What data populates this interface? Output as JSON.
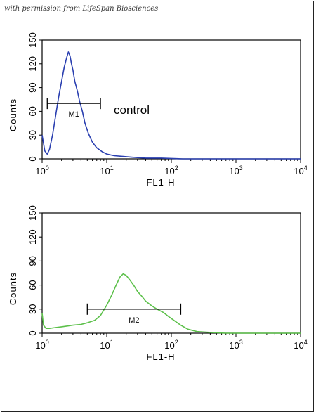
{
  "watermark": "with permission from LifeSpan Biosciences",
  "chart_data": [
    {
      "type": "line",
      "title": "",
      "xlabel": "FL1-H",
      "ylabel": "Counts",
      "xscale": "log",
      "xlim": [
        1,
        10000
      ],
      "ylim": [
        0,
        150
      ],
      "grid": false,
      "x_ticks": [
        {
          "base": "10",
          "exp": "0"
        },
        {
          "base": "10",
          "exp": "1"
        },
        {
          "base": "10",
          "exp": "2"
        },
        {
          "base": "10",
          "exp": "3"
        },
        {
          "base": "10",
          "exp": "4"
        }
      ],
      "y_ticks": [
        "0",
        "30",
        "60",
        "90",
        "120",
        "150"
      ],
      "annotation": "control",
      "gate": {
        "label": "M1",
        "x_start": 1.2,
        "x_end": 8.0,
        "y": 70
      },
      "series": [
        {
          "color": "#2a3fb0",
          "x": [
            1.0,
            1.05,
            1.1,
            1.2,
            1.3,
            1.45,
            1.6,
            1.8,
            2.0,
            2.2,
            2.4,
            2.55,
            2.7,
            2.85,
            3.0,
            3.2,
            3.5,
            3.8,
            4.2,
            4.6,
            5.2,
            6.0,
            7.0,
            8.5,
            10,
            13,
            18,
            25,
            40,
            70,
            150,
            400,
            1000,
            3000,
            10000
          ],
          "y": [
            30,
            20,
            10,
            6,
            12,
            30,
            52,
            78,
            98,
            116,
            128,
            135,
            130,
            120,
            112,
            98,
            86,
            73,
            60,
            45,
            32,
            21,
            14,
            9,
            6,
            4,
            3,
            2,
            1,
            1,
            0,
            0,
            0,
            0,
            0
          ]
        }
      ]
    },
    {
      "type": "line",
      "title": "",
      "xlabel": "FL1-H",
      "ylabel": "Counts",
      "xscale": "log",
      "xlim": [
        1,
        10000
      ],
      "ylim": [
        0,
        150
      ],
      "grid": false,
      "x_ticks": [
        {
          "base": "10",
          "exp": "0"
        },
        {
          "base": "10",
          "exp": "1"
        },
        {
          "base": "10",
          "exp": "2"
        },
        {
          "base": "10",
          "exp": "3"
        },
        {
          "base": "10",
          "exp": "4"
        }
      ],
      "y_ticks": [
        "0",
        "30",
        "60",
        "90",
        "120",
        "150"
      ],
      "annotation": "",
      "gate": {
        "label": "M2",
        "x_start": 5.0,
        "x_end": 140,
        "y": 30
      },
      "series": [
        {
          "color": "#5cc04a",
          "x": [
            1.0,
            1.05,
            1.15,
            1.3,
            1.6,
            2.0,
            2.5,
            3.0,
            4.0,
            5.0,
            6.5,
            8.0,
            10,
            12,
            14,
            16,
            18,
            20,
            23,
            26,
            30,
            35,
            40,
            50,
            60,
            75,
            90,
            110,
            140,
            180,
            250,
            400,
            700,
            1500,
            4000,
            10000
          ],
          "y": [
            25,
            10,
            6,
            6,
            7,
            8,
            9,
            10,
            11,
            13,
            16,
            22,
            35,
            48,
            60,
            70,
            74,
            72,
            66,
            60,
            52,
            46,
            40,
            34,
            30,
            26,
            21,
            16,
            10,
            5,
            2,
            1,
            0,
            0,
            0,
            0
          ]
        }
      ]
    }
  ]
}
